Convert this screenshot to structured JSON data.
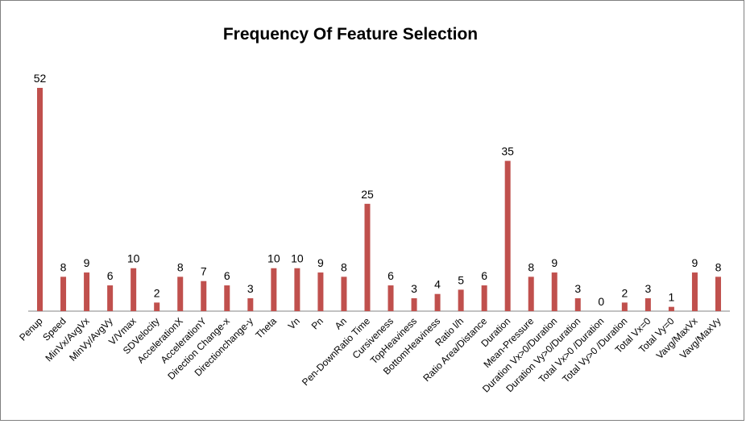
{
  "chart_data": {
    "type": "bar",
    "title": "Frequency Of Feature Selection",
    "xlabel": "",
    "ylabel": "",
    "ylim": [
      0,
      52
    ],
    "grid": false,
    "legend": "none",
    "bar_color": "#C0504D",
    "axis_color": "#868686",
    "categories": [
      "Penup",
      "Speed",
      "MinVx/AvgVx",
      "MinVy/AvgVy",
      "V/Vmax",
      "SDVelocity",
      "AccelerationX",
      "AccelerationY",
      "Direction Change-x",
      "Directionchange-y",
      "Theta",
      "Vn",
      "Pn",
      "An",
      "Pen-DownRatio Time",
      "Cursiveness",
      "TopHeaviness",
      "BottomHeaviness",
      "Ratio l/h",
      "Ratio Area/Distance",
      "Duration",
      "Mean-Pressure",
      "Duration Vx>0/Duration",
      "Duration Vy>0/Duration",
      "Total Vx>0 /Duration",
      "Total Vy>0 /Duration",
      "Total Vx=0",
      "Total Vy=0",
      "Vavg/MaxVx",
      "Vavg/MaxVy"
    ],
    "values": [
      52,
      8,
      9,
      6,
      10,
      2,
      8,
      7,
      6,
      3,
      10,
      10,
      9,
      8,
      25,
      6,
      3,
      4,
      5,
      6,
      35,
      8,
      9,
      3,
      0,
      2,
      3,
      1,
      9,
      8
    ]
  }
}
